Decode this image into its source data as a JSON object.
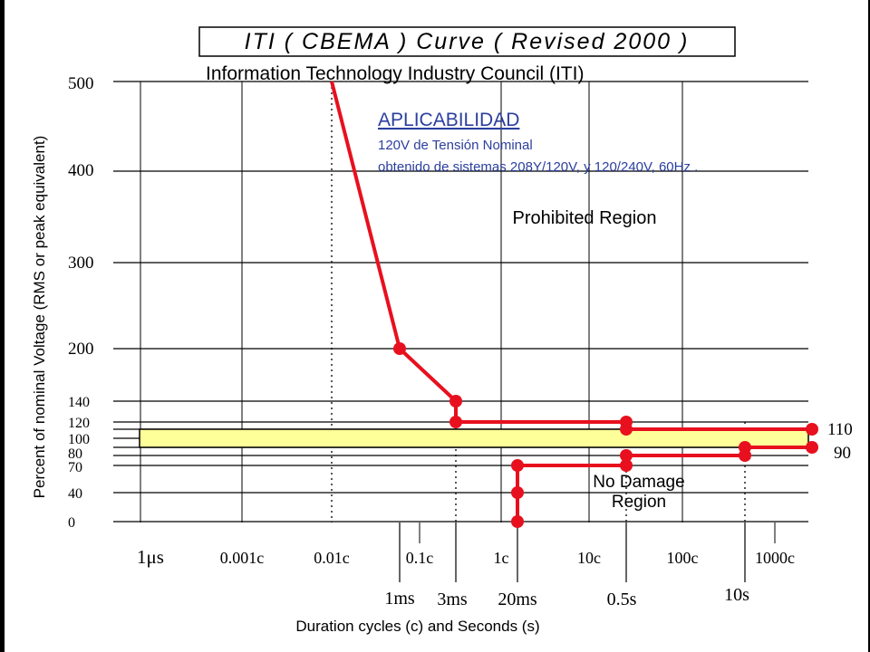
{
  "title": "ITI ( CBEMA ) Curve ( Revised 2000 )",
  "subtitle": "Information Technology Industry Council (ITI)",
  "applicability": {
    "heading": "APLICABILIDAD",
    "line1": "120V de Tensión Nominal",
    "line2": "obtenido de sistemas 208Y/120V, y 120/240V,  60Hz ."
  },
  "regions": {
    "prohibited": "Prohibited Region",
    "no_damage_1": "No Damage",
    "no_damage_2": "Region"
  },
  "colors": {
    "curve": "#e8101e",
    "band": "#ffff99",
    "accent_text": "#2b3f9e",
    "grid": "#000000"
  },
  "chart_data": {
    "type": "line",
    "title": "ITI ( CBEMA ) Curve ( Revised 2000 )",
    "xlabel": "Duration cycles (c) and Seconds (s)",
    "ylabel": "Percent of nominal Voltage (RMS or peak equivalent)",
    "x_scale": "log (decades of cycles at 60 Hz)",
    "x_ticks": [
      "1μs",
      "0.001c",
      "0.01c",
      "0.1c",
      "1c",
      "10c",
      "100c",
      "1000c"
    ],
    "x_ticks_seconds": [
      "1ms",
      "3ms",
      "20ms",
      "0.5s",
      "10s"
    ],
    "y_ticks": [
      0,
      40,
      70,
      80,
      90,
      100,
      110,
      120,
      140,
      200,
      300,
      400,
      500
    ],
    "y_tick_labels": [
      "0",
      "40",
      "70",
      "80",
      "100",
      "120",
      "140",
      "200",
      "300",
      "400",
      "500"
    ],
    "ylim": [
      0,
      500
    ],
    "grid": true,
    "nominal_band": [
      90,
      110
    ],
    "band_end_labels": [
      "110",
      "90"
    ],
    "series": [
      {
        "segment": "overvoltage",
        "points": [
          {
            "x": "0.01c",
            "y": 500
          },
          {
            "x": "1ms",
            "y": 200
          },
          {
            "x": "3ms",
            "y": 140
          },
          {
            "x": "3ms",
            "y": 120
          },
          {
            "x": "0.5s",
            "y": 120
          },
          {
            "x": "0.5s",
            "y": 110
          },
          {
            "x": "1000c+",
            "y": 110
          }
        ]
      },
      {
        "segment": "undervoltage",
        "points": [
          {
            "x": "20ms",
            "y": 0
          },
          {
            "x": "20ms",
            "y": 40
          },
          {
            "x": "20ms",
            "y": 70
          },
          {
            "x": "0.5s",
            "y": 70
          },
          {
            "x": "0.5s",
            "y": 80
          },
          {
            "x": "10s",
            "y": 80
          },
          {
            "x": "10s",
            "y": 90
          },
          {
            "x": "1000c+",
            "y": 90
          }
        ]
      }
    ]
  }
}
